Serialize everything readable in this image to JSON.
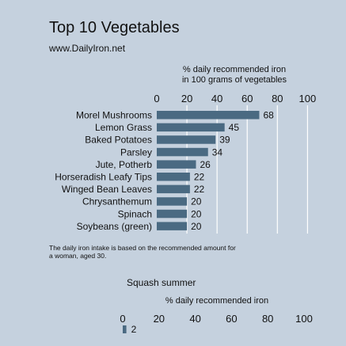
{
  "header": {
    "title": "Top 10 Vegetables",
    "subtitle": "www.DailyIron.net"
  },
  "note": "The daily iron intake is based on the recommended amount for a woman, aged 30.",
  "chart_data": [
    {
      "type": "bar",
      "orientation": "horizontal",
      "title": "",
      "xlabel": "% daily recommended iron in 100 grams of vegetables",
      "xlabel_lines": [
        "% daily recommended iron",
        "in 100 grams of vegetables"
      ],
      "xlim": [
        0,
        100
      ],
      "ticks": [
        0,
        20,
        40,
        60,
        80,
        100
      ],
      "grid": true,
      "bar_color": "#4a6a82",
      "categories": [
        "Morel Mushrooms",
        "Lemon Grass",
        "Baked Potatoes",
        "Parsley",
        "Jute, Potherb",
        "Horseradish Leafy Tips",
        "Winged Bean Leaves",
        "Chrysanthemum",
        "Spinach",
        "Soybeans (green)"
      ],
      "values": [
        68,
        45,
        39,
        34,
        26,
        22,
        22,
        20,
        20,
        20
      ]
    },
    {
      "type": "bar",
      "orientation": "horizontal",
      "title": "Squash summer",
      "xlabel": "% daily recommended iron",
      "xlim": [
        0,
        100
      ],
      "ticks": [
        0,
        20,
        40,
        60,
        80,
        100
      ],
      "grid": false,
      "bar_color": "#4a6a82",
      "categories": [
        ""
      ],
      "values": [
        2
      ]
    }
  ]
}
